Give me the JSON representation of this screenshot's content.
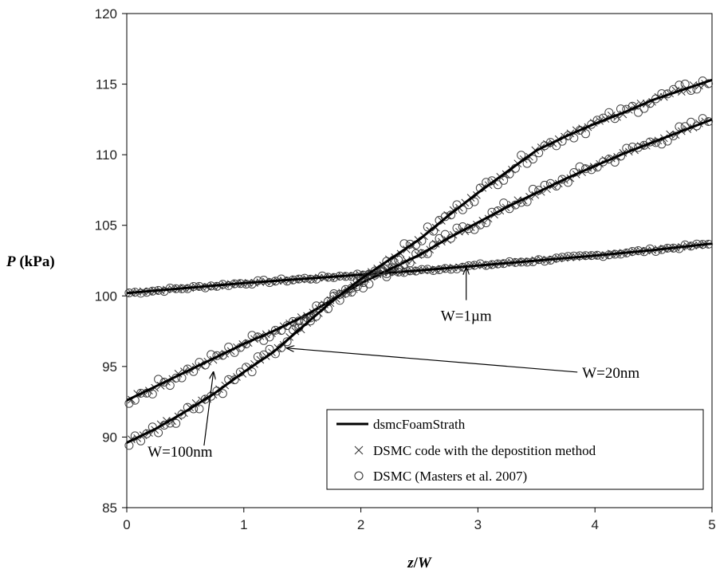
{
  "chart_data": {
    "type": "line",
    "title": "",
    "xlabel_parts": [
      "z",
      "/",
      "W"
    ],
    "ylabel_parts": [
      "P",
      " (kPa)"
    ],
    "xlim": [
      0,
      5
    ],
    "ylim": [
      85,
      120
    ],
    "xticks": [
      0,
      1,
      2,
      3,
      4,
      5
    ],
    "yticks": [
      85,
      90,
      95,
      100,
      105,
      110,
      115,
      120
    ],
    "grid": false,
    "legend_position": "bottom-right",
    "legend": [
      {
        "label": "dsmcFoamStrath",
        "marker": "line"
      },
      {
        "label": "DSMC code with the depostition method",
        "marker": "x"
      },
      {
        "label": "DSMC (Masters et al. 2007)",
        "marker": "o"
      }
    ],
    "annotations": [
      {
        "text": "W=1µm",
        "arrow_from": [
          2.9,
          99.7
        ],
        "arrow_to": [
          2.9,
          102.0
        ]
      },
      {
        "text": "W=20nm",
        "arrow_from": [
          3.85,
          94.6
        ],
        "arrow_to": [
          1.37,
          96.3
        ]
      },
      {
        "text": "W=100nm",
        "arrow_from": [
          0.66,
          89.4
        ],
        "arrow_to": [
          0.74,
          94.6
        ]
      }
    ],
    "series": [
      {
        "key": "w1um",
        "x": [
          0,
          0.5,
          1.0,
          1.5,
          2.0,
          2.5,
          3.0,
          3.5,
          4.0,
          4.5,
          5.0
        ],
        "y": [
          100.2,
          100.55,
          100.9,
          101.2,
          101.5,
          101.8,
          102.15,
          102.5,
          102.85,
          103.25,
          103.7
        ]
      },
      {
        "key": "w20nm",
        "x": [
          0,
          0.25,
          0.5,
          0.75,
          1.0,
          1.25,
          1.5,
          1.75,
          2.0,
          2.25,
          2.5,
          2.75,
          3.0,
          3.25,
          3.5,
          3.75,
          4.0,
          4.25,
          4.5,
          4.75,
          5.0
        ],
        "y": [
          92.6,
          93.6,
          94.6,
          95.6,
          96.6,
          97.5,
          98.5,
          99.7,
          100.9,
          101.9,
          102.9,
          104.1,
          105.2,
          106.3,
          107.3,
          108.3,
          109.2,
          110.1,
          110.9,
          111.7,
          112.5
        ]
      },
      {
        "key": "w100nm",
        "x": [
          0,
          0.25,
          0.5,
          0.75,
          1.0,
          1.25,
          1.5,
          1.75,
          2.0,
          2.25,
          2.5,
          2.75,
          3.0,
          3.25,
          3.5,
          3.75,
          4.0,
          4.25,
          4.5,
          4.75,
          5.0
        ],
        "y": [
          89.6,
          90.6,
          91.8,
          93.1,
          94.6,
          96.0,
          97.8,
          99.6,
          101.2,
          102.6,
          104.0,
          105.7,
          107.3,
          108.8,
          110.3,
          111.3,
          112.2,
          113.0,
          113.9,
          114.6,
          115.3
        ]
      }
    ]
  }
}
